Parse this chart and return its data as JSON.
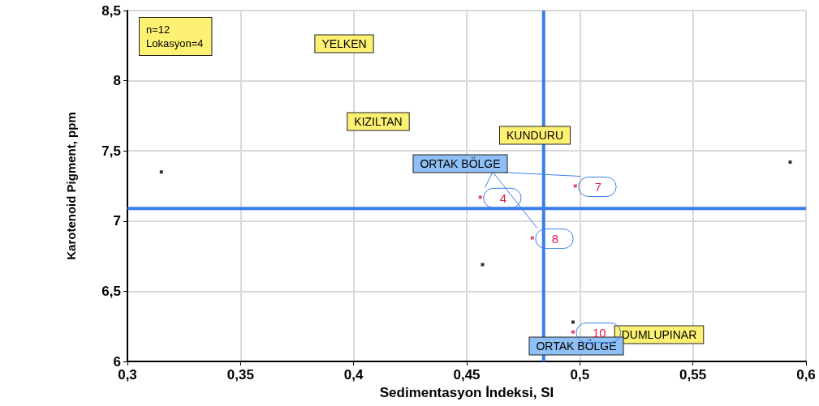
{
  "chart_data": {
    "type": "scatter",
    "xlabel": "Sedimentasyon İndeksi, SI",
    "ylabel": "Karotenoid Pigment, ppm",
    "series": [
      {
        "color": "#000000",
        "x": [
          0.315,
          0.593,
          0.457,
          0.497
        ],
        "values": [
          7.35,
          7.42,
          6.69,
          6.28
        ]
      },
      {
        "color": "#e0204a",
        "x": [
          0.456,
          0.498,
          0.479,
          0.497
        ],
        "values": [
          7.17,
          7.25,
          6.88,
          6.21
        ]
      }
    ],
    "xlim": [
      0.3,
      0.6
    ],
    "ylim": [
      6,
      8.5
    ],
    "xticks": [
      {
        "value": 0.3,
        "label": "0,3"
      },
      {
        "value": 0.35,
        "label": "0,35"
      },
      {
        "value": 0.4,
        "label": "0,4"
      },
      {
        "value": 0.45,
        "label": "0,45"
      },
      {
        "value": 0.5,
        "label": "0,5"
      },
      {
        "value": 0.55,
        "label": "0,55"
      },
      {
        "value": 0.6,
        "label": "0,6"
      }
    ],
    "yticks": [
      6,
      {
        "value": 6.5,
        "label": "6,5"
      },
      7,
      {
        "value": 7.5,
        "label": "7,5"
      },
      8,
      {
        "value": 8.5,
        "label": "8,5"
      }
    ],
    "ref_lines": [
      {
        "axis": "x",
        "value": 0.484,
        "color": "#3b7dea"
      },
      {
        "axis": "y",
        "value": 7.09,
        "color": "#3b7dea"
      }
    ],
    "annotations": [
      "n=12\nLokasyon=4",
      "YELKEN",
      "KIZILTAN",
      "KUNDURU",
      "ORTAK BÖLGE",
      "DUMLUPINAR",
      "ORTAK BÖLGE",
      {
        "text": "4",
        "x": 0.456,
        "y": 7.17
      },
      {
        "text": "7",
        "x": 0.498,
        "y": 7.25
      },
      {
        "text": "8",
        "x": 0.479,
        "y": 6.88
      },
      {
        "text": "10",
        "x": 0.497,
        "y": 6.21
      }
    ],
    "grid": true,
    "marker": "square"
  }
}
